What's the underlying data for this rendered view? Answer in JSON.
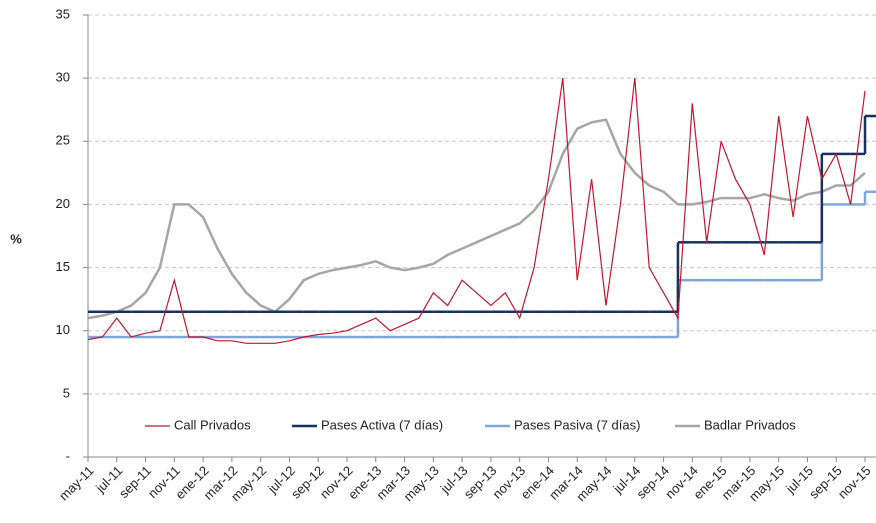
{
  "chart_data": {
    "type": "line",
    "y_label": "%",
    "categories": [
      "may-11",
      null,
      "jul-11",
      null,
      "sep-11",
      null,
      "nov-11",
      null,
      "ene-12",
      null,
      "mar-12",
      null,
      "may-12",
      null,
      "jul-12",
      null,
      "sep-12",
      null,
      "nov-12",
      null,
      "ene-13",
      null,
      "mar-13",
      null,
      "may-13",
      null,
      "jul-13",
      null,
      "sep-13",
      null,
      "nov-13",
      null,
      "ene-14",
      null,
      "mar-14",
      null,
      "may-14",
      null,
      "jul-14",
      null,
      "sep-14",
      null,
      "nov-14",
      null,
      "ene-15",
      null,
      "mar-15",
      null,
      "may-15",
      null,
      "jul-15",
      null,
      "sep-15",
      null,
      "nov-15"
    ],
    "ylim": [
      0,
      35
    ],
    "yticks": [
      {
        "value": 0,
        "label": "-"
      },
      5,
      10,
      15,
      20,
      25,
      30,
      35
    ],
    "grid": true,
    "legend": "bottom",
    "series": [
      {
        "name": "Call Privados",
        "color": "#c0182d",
        "step": false,
        "values": [
          9.3,
          9.5,
          11,
          9.5,
          9.8,
          10,
          14,
          9.5,
          9.5,
          9.2,
          9.2,
          9.0,
          9.0,
          9.0,
          9.2,
          9.5,
          9.7,
          9.8,
          10,
          10.5,
          11,
          10,
          10.5,
          11,
          13,
          12,
          14,
          13,
          12,
          13,
          11,
          15,
          22,
          30,
          14,
          22,
          12,
          20,
          30,
          15,
          13,
          11,
          28,
          17,
          25,
          22,
          20,
          16,
          27,
          19,
          27,
          22,
          24,
          20,
          29
        ]
      },
      {
        "name": "Pases Activa (7 días)",
        "color": "#17305e",
        "step": true,
        "values": [
          11.5,
          11.5,
          11.5,
          11.5,
          11.5,
          11.5,
          11.5,
          11.5,
          11.5,
          11.5,
          11.5,
          11.5,
          11.5,
          11.5,
          11.5,
          11.5,
          11.5,
          11.5,
          11.5,
          11.5,
          11.5,
          11.5,
          11.5,
          11.5,
          11.5,
          11.5,
          11.5,
          11.5,
          11.5,
          11.5,
          11.5,
          11.5,
          11.5,
          11.5,
          11.5,
          11.5,
          11.5,
          11.5,
          11.5,
          11.5,
          11.5,
          17,
          17,
          17,
          17,
          17,
          17,
          17,
          17,
          17,
          17,
          24,
          24,
          24,
          27
        ]
      },
      {
        "name": "Pases Pasiva (7 días)",
        "color": "#7da7d8",
        "step": true,
        "values": [
          9.5,
          9.5,
          9.5,
          9.5,
          9.5,
          9.5,
          9.5,
          9.5,
          9.5,
          9.5,
          9.5,
          9.5,
          9.5,
          9.5,
          9.5,
          9.5,
          9.5,
          9.5,
          9.5,
          9.5,
          9.5,
          9.5,
          9.5,
          9.5,
          9.5,
          9.5,
          9.5,
          9.5,
          9.5,
          9.5,
          9.5,
          9.5,
          9.5,
          9.5,
          9.5,
          9.5,
          9.5,
          9.5,
          9.5,
          9.5,
          9.5,
          14,
          14,
          14,
          14,
          14,
          14,
          14,
          14,
          14,
          14,
          20,
          20,
          20,
          21
        ]
      },
      {
        "name": "Badlar Privados",
        "color": "#a6a6a6",
        "step": false,
        "values": [
          11,
          11.2,
          11.5,
          12,
          13,
          15,
          20,
          20,
          19,
          16.5,
          14.5,
          13,
          12,
          11.5,
          12.5,
          14,
          14.5,
          14.8,
          15,
          15.2,
          15.5,
          15,
          14.8,
          15,
          15.3,
          16,
          16.5,
          17,
          17.5,
          18,
          18.5,
          19.5,
          21,
          24,
          26,
          26.5,
          26.7,
          24,
          22.5,
          21.5,
          21,
          20,
          20,
          20.2,
          20.5,
          20.5,
          20.5,
          20.8,
          20.5,
          20.3,
          20.8,
          21,
          21.5,
          21.5,
          22.5
        ]
      }
    ]
  }
}
